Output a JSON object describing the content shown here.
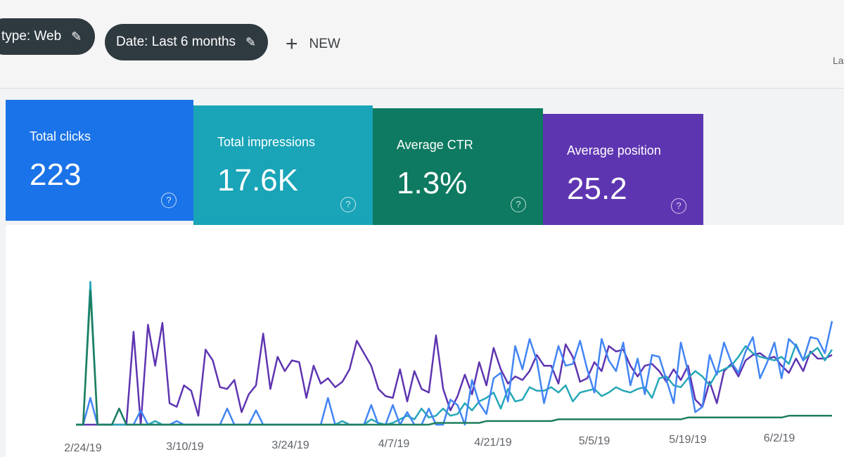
{
  "filters": {
    "type_chip": "type: Web",
    "date_chip": "Date: Last 6 months",
    "new_label": "NEW",
    "corner_text": "La"
  },
  "cards": [
    {
      "label": "Total clicks",
      "value": "223",
      "color": "#1a73e8"
    },
    {
      "label": "Total impressions",
      "value": "17.6K",
      "color": "#19a4b8"
    },
    {
      "label": "Average CTR",
      "value": "1.3%",
      "color": "#0d7a61"
    },
    {
      "label": "Average position",
      "value": "25.2",
      "color": "#5e35b1"
    }
  ],
  "icons": {
    "help": "help-circle-icon",
    "pencil": "pencil-icon",
    "plus": "plus-icon"
  },
  "chart_data": {
    "type": "line",
    "x_tick_labels": [
      "2/24/19",
      "3/10/19",
      "3/24/19",
      "4/7/19",
      "4/21/19",
      "5/5/19",
      "5/19/19",
      "6/2/19"
    ],
    "series": [
      {
        "color": "#5e35b1",
        "values": [
          0,
          0,
          0,
          0,
          0,
          0,
          0,
          0,
          52,
          0,
          56,
          33,
          57,
          12,
          10,
          22,
          19,
          5,
          42,
          36,
          21,
          20,
          25,
          7,
          17,
          22,
          51,
          20,
          38,
          30,
          36,
          35,
          15,
          33,
          23,
          26,
          21,
          24,
          31,
          47,
          40,
          33,
          20,
          16,
          15,
          31,
          13,
          30,
          20,
          18,
          50,
          20,
          8,
          16,
          28,
          17,
          35,
          22,
          43,
          31,
          23,
          27,
          25,
          30,
          39,
          33,
          33,
          23,
          45,
          38,
          24,
          26,
          35,
          30,
          44,
          41,
          42,
          33,
          27,
          33,
          34,
          30,
          24,
          31,
          25,
          33,
          14,
          10,
          24,
          12,
          30,
          34,
          27,
          36,
          39,
          40,
          37,
          38,
          33,
          29,
          37,
          30,
          41,
          37,
          37,
          39
        ]
      },
      {
        "color": "#26a7b8",
        "values": [
          0,
          0,
          80,
          0,
          0,
          0,
          0,
          0,
          0,
          0,
          0,
          2,
          0,
          0,
          0,
          0,
          0,
          0,
          0,
          0,
          0,
          0,
          0,
          0,
          0,
          0,
          0,
          0,
          0,
          0,
          0,
          0,
          0,
          0,
          0,
          0,
          0,
          2,
          0,
          0,
          0,
          3,
          1,
          0,
          1,
          3,
          5,
          3,
          9,
          4,
          5,
          9,
          5,
          6,
          12,
          8,
          13,
          15,
          18,
          9,
          20,
          13,
          14,
          21,
          19,
          19,
          21,
          18,
          22,
          13,
          18,
          19,
          20,
          16,
          18,
          21,
          19,
          18,
          20,
          21,
          15,
          26,
          27,
          22,
          21,
          26,
          30,
          27,
          22,
          29,
          31,
          33,
          38,
          44,
          40,
          38,
          37,
          36,
          38,
          34,
          45,
          36,
          40,
          43,
          36,
          42
        ]
      },
      {
        "color": "#4285f4",
        "values": [
          0,
          0,
          15,
          0,
          0,
          0,
          9,
          0,
          0,
          8,
          0,
          0,
          0,
          0,
          2,
          0,
          0,
          0,
          0,
          0,
          0,
          9,
          0,
          0,
          0,
          8,
          0,
          0,
          0,
          0,
          0,
          0,
          0,
          0,
          0,
          15,
          0,
          0,
          0,
          0,
          0,
          11,
          0,
          0,
          11,
          0,
          7,
          0,
          0,
          9,
          0,
          0,
          14,
          11,
          0,
          25,
          12,
          6,
          26,
          29,
          13,
          44,
          31,
          48,
          36,
          12,
          28,
          44,
          33,
          34,
          47,
          31,
          18,
          48,
          36,
          30,
          46,
          22,
          37,
          17,
          39,
          38,
          25,
          12,
          46,
          30,
          7,
          10,
          39,
          28,
          46,
          35,
          29,
          41,
          49,
          26,
          35,
          46,
          26,
          48,
          44,
          36,
          49,
          48,
          40,
          58
        ]
      },
      {
        "color": "#1e7e5e",
        "values": [
          0,
          0,
          75,
          0,
          0,
          0,
          9,
          0,
          0,
          0,
          0,
          0,
          0,
          0,
          0,
          0,
          0,
          0,
          0,
          0,
          0,
          0,
          0,
          0,
          0,
          0,
          0,
          0,
          0,
          0,
          0,
          0,
          0,
          0,
          0,
          0,
          0,
          0,
          0,
          0,
          0,
          0,
          0,
          0,
          0,
          0,
          0,
          0,
          0,
          0,
          1,
          1,
          1,
          1,
          1,
          1,
          1,
          2,
          2,
          2,
          2,
          2,
          2,
          2,
          2,
          2,
          2,
          3,
          3,
          3,
          3,
          3,
          3,
          3,
          3,
          3,
          3,
          3,
          3,
          3,
          3,
          3,
          3,
          3,
          3,
          4,
          4,
          4,
          4,
          4,
          4,
          4,
          4,
          4,
          4,
          4,
          4,
          4,
          4,
          5,
          5,
          5,
          5,
          5,
          5,
          5
        ]
      }
    ],
    "grid": false,
    "legend": "none"
  }
}
